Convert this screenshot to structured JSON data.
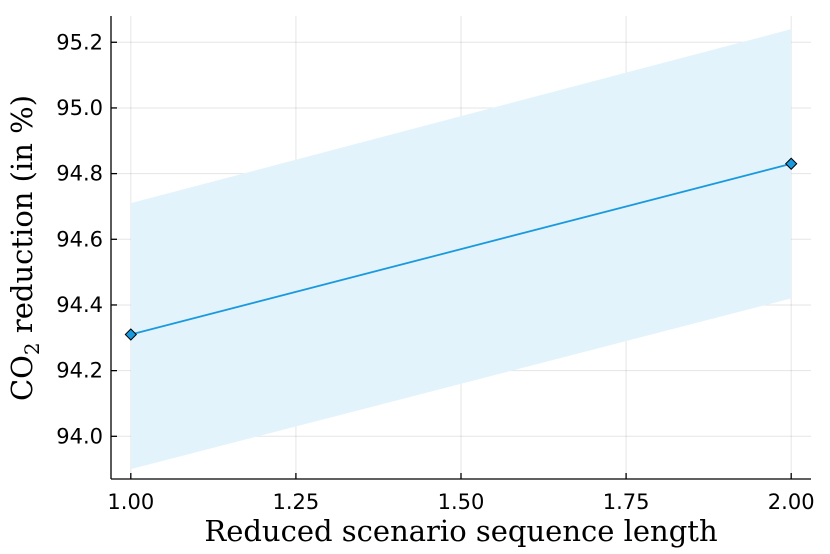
{
  "chart_data": {
    "type": "line",
    "x": [
      1.0,
      2.0
    ],
    "series": [
      {
        "values": [
          94.31,
          94.83
        ],
        "lower": [
          93.9,
          94.42
        ],
        "upper": [
          94.71,
          95.24
        ],
        "color": "#1a9ade",
        "band_color": "#e3f3fc",
        "marker": "diamond"
      }
    ],
    "xlim": [
      0.97,
      2.03
    ],
    "ylim": [
      93.87,
      95.28
    ],
    "xticks": [
      1.0,
      1.25,
      1.5,
      1.75,
      2.0
    ],
    "xtick_labels": [
      "1.00",
      "1.25",
      "1.50",
      "1.75",
      "2.00"
    ],
    "yticks": [
      94.0,
      94.2,
      94.4,
      94.6,
      94.8,
      95.0,
      95.2
    ],
    "ytick_labels": [
      "94.0",
      "94.2",
      "94.4",
      "94.6",
      "94.8",
      "95.0",
      "95.2"
    ],
    "xlabel": "Reduced scenario sequence length",
    "ylabel_prefix": "CO",
    "ylabel_subscript": "2",
    "ylabel_suffix": " reduction (in %)",
    "grid": true,
    "legend": "none"
  }
}
